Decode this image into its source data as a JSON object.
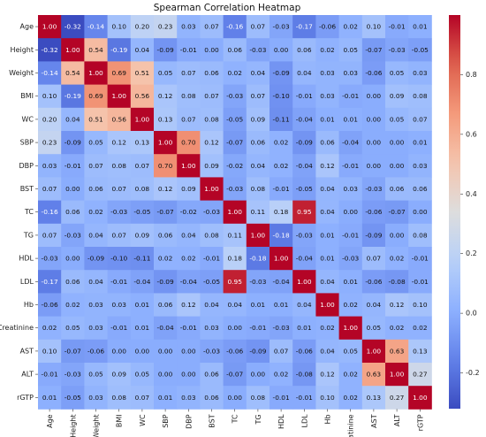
{
  "chart_data": {
    "type": "heatmap",
    "title": "Spearman Correlation Heatmap",
    "variables": [
      "Age",
      "Height",
      "Weight",
      "BMI",
      "WC",
      "SBP",
      "DBP",
      "BST",
      "TC",
      "TG",
      "HDL",
      "LDL",
      "Hb",
      "Creatinine",
      "AST",
      "ALT",
      "rGTP"
    ],
    "matrix": [
      [
        1.0,
        -0.32,
        -0.14,
        0.1,
        0.2,
        0.23,
        0.03,
        0.07,
        -0.16,
        0.07,
        -0.03,
        -0.17,
        -0.06,
        0.02,
        0.1,
        -0.01,
        0.01
      ],
      [
        -0.32,
        1.0,
        0.54,
        -0.19,
        0.04,
        -0.09,
        -0.01,
        0.0,
        0.06,
        -0.03,
        -0.0,
        0.06,
        0.02,
        0.05,
        -0.07,
        -0.03,
        -0.05
      ],
      [
        -0.14,
        0.54,
        1.0,
        0.69,
        0.51,
        0.05,
        0.07,
        0.06,
        0.02,
        0.04,
        -0.09,
        0.04,
        0.03,
        0.03,
        -0.06,
        0.05,
        0.03
      ],
      [
        0.1,
        -0.19,
        0.69,
        1.0,
        0.56,
        0.12,
        0.08,
        0.07,
        -0.03,
        0.07,
        -0.1,
        -0.01,
        0.03,
        -0.01,
        -0.0,
        0.09,
        0.08
      ],
      [
        0.2,
        0.04,
        0.51,
        0.56,
        1.0,
        0.13,
        0.07,
        0.08,
        -0.05,
        0.09,
        -0.11,
        -0.04,
        0.01,
        0.01,
        -0.0,
        0.05,
        0.07
      ],
      [
        0.23,
        -0.09,
        0.05,
        0.12,
        0.13,
        1.0,
        0.7,
        0.12,
        -0.07,
        0.06,
        0.02,
        -0.09,
        0.06,
        -0.04,
        0.0,
        -0.0,
        0.01
      ],
      [
        0.03,
        -0.01,
        0.07,
        0.08,
        0.07,
        0.7,
        1.0,
        0.09,
        -0.02,
        0.04,
        0.02,
        -0.04,
        0.12,
        -0.01,
        -0.0,
        0.0,
        0.03
      ],
      [
        0.07,
        0.0,
        0.06,
        0.07,
        0.08,
        0.12,
        0.09,
        1.0,
        -0.03,
        0.08,
        -0.01,
        -0.05,
        0.04,
        0.03,
        -0.03,
        0.06,
        0.06
      ],
      [
        -0.16,
        0.06,
        0.02,
        -0.03,
        -0.05,
        -0.07,
        -0.02,
        -0.03,
        1.0,
        0.11,
        0.18,
        0.95,
        0.04,
        0.0,
        -0.06,
        -0.07,
        -0.0
      ],
      [
        0.07,
        -0.03,
        0.04,
        0.07,
        0.09,
        0.06,
        0.04,
        0.08,
        0.11,
        1.0,
        -0.18,
        -0.03,
        0.01,
        -0.01,
        -0.09,
        -0.0,
        0.08
      ],
      [
        -0.03,
        -0.0,
        -0.09,
        -0.1,
        -0.11,
        0.02,
        0.02,
        -0.01,
        0.18,
        -0.18,
        1.0,
        -0.04,
        0.01,
        -0.03,
        0.07,
        0.02,
        -0.01
      ],
      [
        -0.17,
        0.06,
        0.04,
        -0.01,
        -0.04,
        -0.09,
        -0.04,
        -0.05,
        0.95,
        -0.03,
        -0.04,
        1.0,
        0.04,
        0.01,
        -0.06,
        -0.08,
        -0.01
      ],
      [
        -0.06,
        0.02,
        0.03,
        0.03,
        0.01,
        0.06,
        0.12,
        0.04,
        0.04,
        0.01,
        0.01,
        0.04,
        1.0,
        0.02,
        0.04,
        0.12,
        0.1
      ],
      [
        0.02,
        0.05,
        0.03,
        -0.01,
        0.01,
        -0.04,
        -0.01,
        0.03,
        0.0,
        -0.01,
        -0.03,
        0.01,
        0.02,
        1.0,
        0.05,
        0.02,
        0.02
      ],
      [
        0.1,
        -0.07,
        -0.06,
        -0.0,
        -0.0,
        0.0,
        -0.0,
        -0.03,
        -0.06,
        -0.09,
        0.07,
        -0.06,
        0.04,
        0.05,
        1.0,
        0.63,
        0.13
      ],
      [
        -0.01,
        -0.03,
        0.05,
        0.09,
        0.05,
        -0.0,
        0.0,
        0.06,
        -0.07,
        -0.0,
        0.02,
        -0.08,
        0.12,
        0.02,
        0.63,
        1.0,
        0.27
      ],
      [
        0.01,
        -0.05,
        0.03,
        0.08,
        0.07,
        0.01,
        0.03,
        0.06,
        -0.0,
        0.08,
        -0.01,
        -0.01,
        0.1,
        0.02,
        0.13,
        0.27,
        1.0
      ]
    ],
    "colorbar": {
      "colormap": "coolwarm",
      "range": [
        -0.32,
        1.0
      ],
      "ticks": [
        -0.2,
        0.0,
        0.2,
        0.4,
        0.6,
        0.8
      ],
      "tick_labels": [
        "-0.2",
        "0.0",
        "0.2",
        "0.4",
        "0.6",
        "0.8"
      ]
    },
    "annotation_decimals": 2,
    "grid": false,
    "legend": "colorbar-right"
  }
}
